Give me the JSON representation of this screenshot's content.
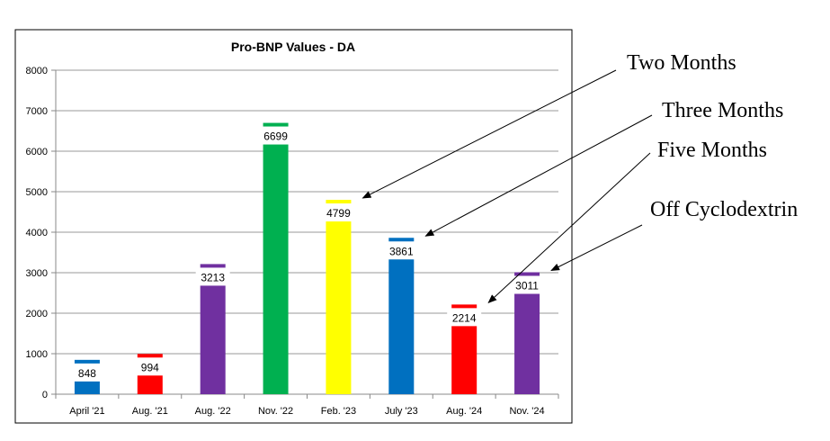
{
  "chart_data": {
    "type": "bar",
    "title": "Pro-BNP Values - DA",
    "xlabel": "",
    "ylabel": "",
    "ylim": [
      0,
      8000
    ],
    "yticks": [
      0,
      1000,
      2000,
      3000,
      4000,
      5000,
      6000,
      7000,
      8000
    ],
    "grid": true,
    "categories": [
      "April '21",
      "Aug. '21",
      "Aug. '22",
      "Nov. '22",
      "Feb. '23",
      "July '23",
      "Aug. '24",
      "Nov. '24"
    ],
    "values": [
      848,
      994,
      3213,
      6699,
      4799,
      3861,
      2214,
      3011
    ],
    "colors": [
      "#0070C0",
      "#FF0000",
      "#7030A0",
      "#00B050",
      "#FFFF00",
      "#0070C0",
      "#FF0000",
      "#7030A0"
    ],
    "annotations": [
      {
        "text": "Two Months",
        "points_to": "Feb. '23"
      },
      {
        "text": "Three Months",
        "points_to": "July '23"
      },
      {
        "text": "Five Months",
        "points_to": "Aug. '24"
      },
      {
        "text": "Off Cyclodextrin",
        "points_to": "Nov. '24"
      }
    ]
  }
}
